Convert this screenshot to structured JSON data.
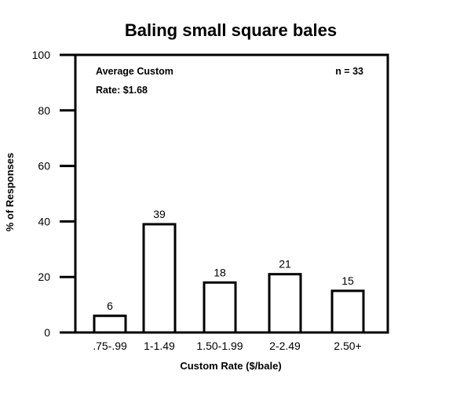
{
  "chart_data": {
    "type": "bar",
    "title": "Baling small square bales",
    "xlabel": "Custom Rate ($/bale)",
    "ylabel": "% of Responses",
    "categories": [
      ".75-.99",
      "1-1.49",
      "1.50-1.99",
      "2-2.49",
      "2.50+"
    ],
    "values": [
      6,
      39,
      18,
      21,
      15
    ],
    "data_labels": [
      "6",
      "39",
      "18",
      "21",
      "15"
    ],
    "ylim": [
      0,
      100
    ],
    "yticks": [
      0,
      20,
      40,
      60,
      80,
      100
    ],
    "grid": false,
    "annotations": [
      "Average Custom",
      "Rate: $1.68",
      "n = 33"
    ],
    "bar_fill": "#ffffff",
    "bar_stroke": "#000000"
  }
}
